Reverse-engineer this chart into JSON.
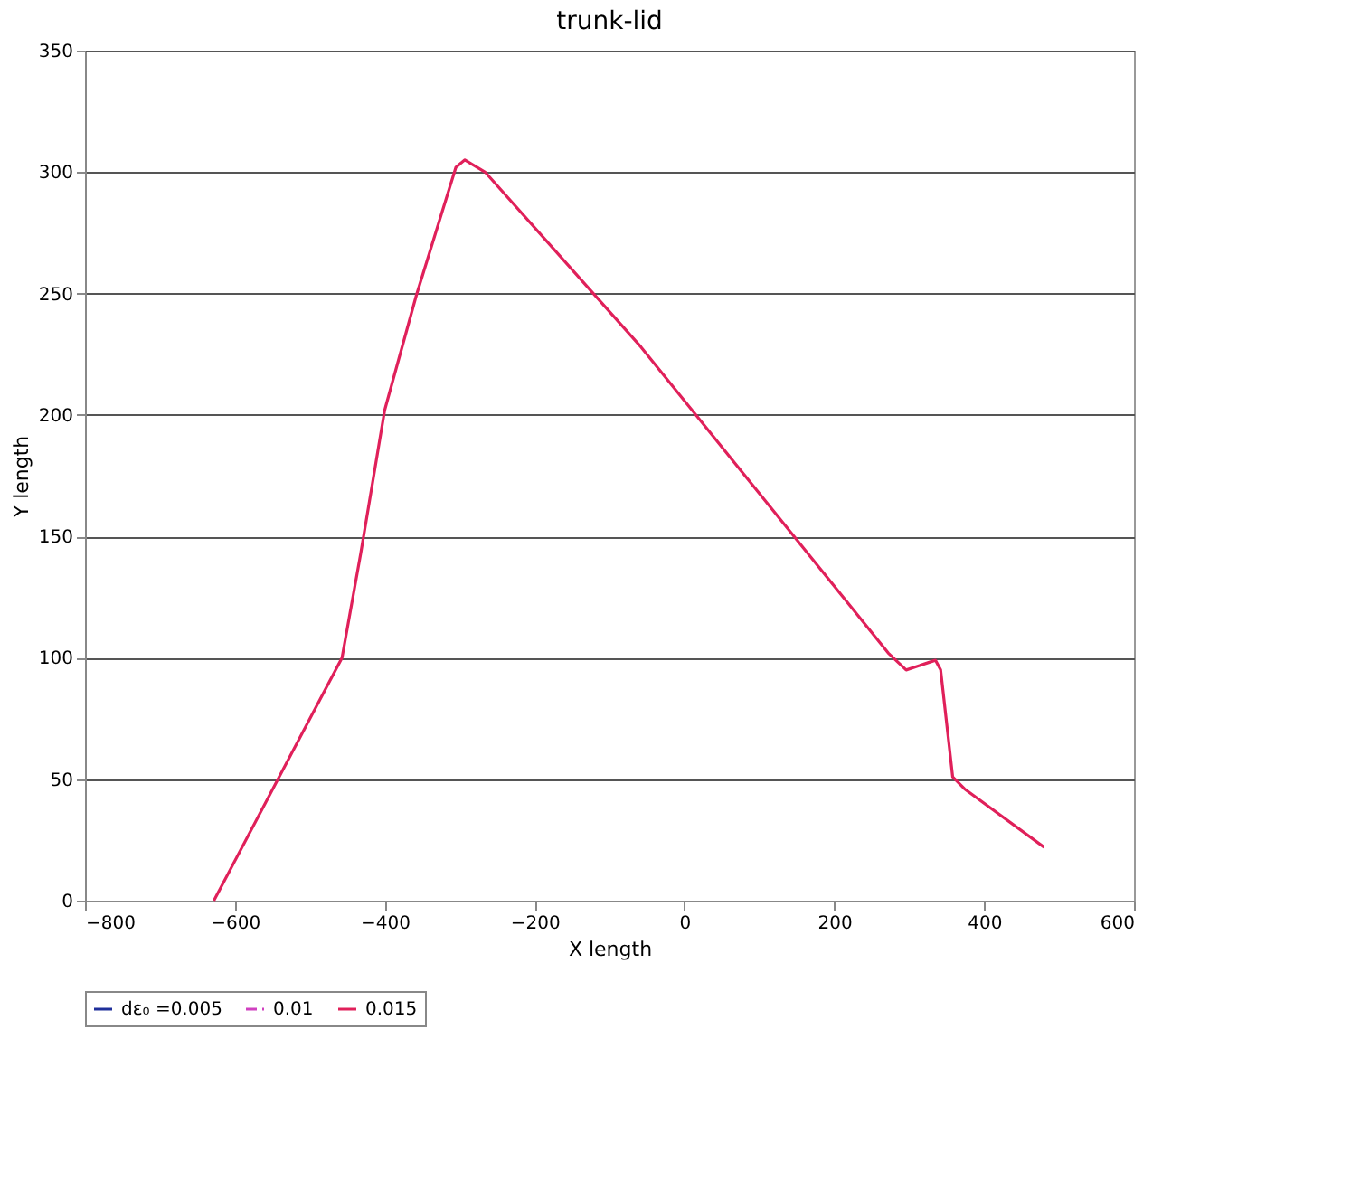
{
  "chart_data": {
    "type": "line",
    "title": "trunk-lid",
    "xlabel": "X length",
    "ylabel": "Y length",
    "x": [
      -628,
      -457,
      -432,
      -400,
      -358,
      -305,
      -293,
      -266,
      -58,
      272,
      296,
      335,
      342,
      358,
      374,
      480
    ],
    "series": [
      {
        "name": "dε₀ =0.005",
        "color": "#1f2f9a",
        "values": [
          null,
          null,
          null,
          null,
          null,
          null,
          null,
          null,
          null,
          null,
          null,
          null,
          null,
          null,
          null,
          null
        ]
      },
      {
        "name": "0.01",
        "color": "#d040c0",
        "line_style": "dashed",
        "values": [
          null,
          null,
          null,
          null,
          null,
          null,
          null,
          null,
          null,
          null,
          null,
          null,
          null,
          null,
          null,
          null
        ]
      },
      {
        "name": "0.015",
        "color": "#e0205a",
        "values": [
          0,
          100,
          143,
          202,
          249,
          302,
          305,
          300,
          228,
          102,
          95,
          99,
          95,
          51,
          46,
          22
        ]
      }
    ],
    "xlim": [
      -800,
      600
    ],
    "xticks": [
      -800,
      -600,
      -400,
      -200,
      0,
      200,
      400,
      600
    ],
    "ylim": [
      0,
      350
    ],
    "yticks": [
      0,
      50,
      100,
      150,
      200,
      250,
      300,
      350
    ],
    "grid": "y",
    "legend": "bottom",
    "marker": "none"
  }
}
